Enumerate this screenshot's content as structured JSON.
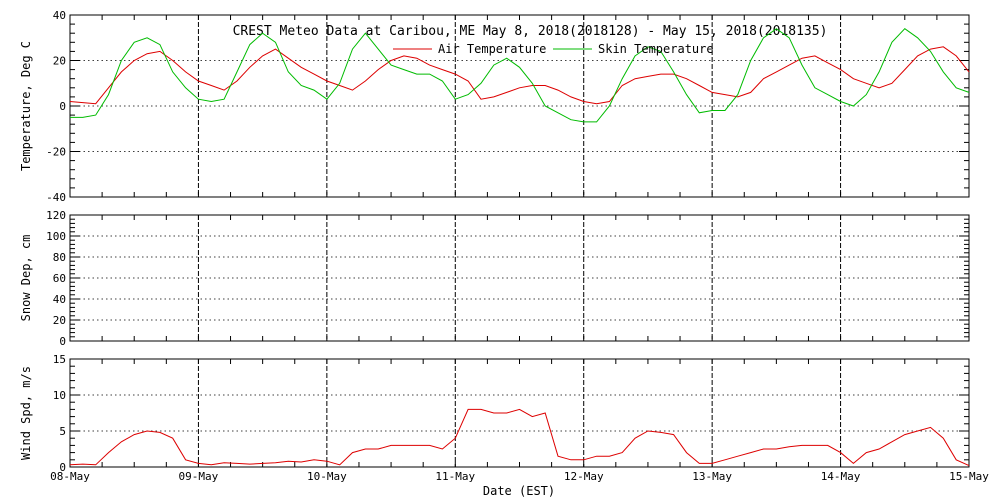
{
  "title": "CREST Meteo Data at Caribou, ME   May  8, 2018(2018128) - May 15, 2018(2018135)",
  "xlabel": "Date (EST)",
  "colors": {
    "air": "#dd0000",
    "skin": "#00bb00",
    "wind": "#dd0000"
  },
  "chart_data": [
    {
      "type": "line",
      "ylabel": "Temperature, Deg C",
      "xlabel": "",
      "xlim": [
        0,
        7
      ],
      "ylim": [
        -40,
        40
      ],
      "yticks": [
        -40,
        -20,
        0,
        20,
        40
      ],
      "xticks": [
        "08-May",
        "09-May",
        "10-May",
        "11-May",
        "12-May",
        "13-May",
        "14-May",
        "15-May"
      ],
      "legend": "top-center",
      "series": [
        {
          "name": "Air Temperature",
          "x": [
            0,
            0.1,
            0.2,
            0.3,
            0.4,
            0.5,
            0.6,
            0.7,
            0.8,
            0.9,
            1,
            1.1,
            1.2,
            1.3,
            1.4,
            1.5,
            1.6,
            1.7,
            1.8,
            1.9,
            2,
            2.1,
            2.2,
            2.3,
            2.4,
            2.5,
            2.6,
            2.7,
            2.8,
            2.9,
            3,
            3.1,
            3.2,
            3.3,
            3.4,
            3.5,
            3.6,
            3.7,
            3.8,
            3.9,
            4,
            4.1,
            4.2,
            4.3,
            4.4,
            4.5,
            4.6,
            4.7,
            4.8,
            4.9,
            5,
            5.1,
            5.2,
            5.3,
            5.4,
            5.5,
            5.6,
            5.7,
            5.8,
            5.9,
            6,
            6.1,
            6.2,
            6.3,
            6.4,
            6.5,
            6.6,
            6.7,
            6.8,
            6.9,
            7
          ],
          "values": [
            2,
            1.5,
            1,
            8,
            15,
            20,
            23,
            24,
            20,
            15,
            11,
            9,
            7,
            11,
            17,
            22,
            25,
            21,
            17,
            14,
            11,
            9,
            7,
            11,
            16,
            20,
            22,
            21,
            18,
            16,
            14,
            11,
            3,
            4,
            6,
            8,
            9,
            9,
            7,
            4,
            2,
            1,
            2,
            9,
            12,
            13,
            14,
            14,
            12,
            9,
            6,
            5,
            4,
            6,
            12,
            15,
            18,
            21,
            22,
            19,
            16,
            12,
            10,
            8,
            10,
            16,
            22,
            25,
            26,
            22,
            15
          ]
        },
        {
          "name": "Skin Temperature",
          "x": [
            0,
            0.1,
            0.2,
            0.3,
            0.4,
            0.5,
            0.6,
            0.7,
            0.8,
            0.9,
            1,
            1.1,
            1.2,
            1.3,
            1.4,
            1.5,
            1.6,
            1.7,
            1.8,
            1.9,
            2,
            2.1,
            2.2,
            2.3,
            2.4,
            2.5,
            2.6,
            2.7,
            2.8,
            2.9,
            3,
            3.1,
            3.2,
            3.3,
            3.4,
            3.5,
            3.6,
            3.7,
            3.8,
            3.9,
            4,
            4.1,
            4.2,
            4.3,
            4.4,
            4.5,
            4.6,
            4.7,
            4.8,
            4.9,
            5,
            5.1,
            5.2,
            5.3,
            5.4,
            5.5,
            5.6,
            5.7,
            5.8,
            5.9,
            6,
            6.1,
            6.2,
            6.3,
            6.4,
            6.5,
            6.6,
            6.7,
            6.8,
            6.9,
            7
          ],
          "values": [
            -5,
            -5,
            -4,
            5,
            20,
            28,
            30,
            27,
            15,
            8,
            3,
            2,
            3,
            15,
            27,
            32,
            28,
            15,
            9,
            7,
            3,
            10,
            25,
            32,
            25,
            18,
            16,
            14,
            14,
            11,
            3,
            5,
            10,
            18,
            21,
            17,
            10,
            0,
            -3,
            -6,
            -7,
            -7,
            0,
            12,
            22,
            26,
            24,
            15,
            5,
            -3,
            -2,
            -2,
            5,
            20,
            30,
            34,
            30,
            18,
            8,
            5,
            2,
            0,
            5,
            15,
            28,
            34,
            30,
            24,
            15,
            8,
            6
          ]
        }
      ]
    },
    {
      "type": "line",
      "ylabel": "Snow Dep, cm",
      "xlabel": "",
      "xlim": [
        0,
        7
      ],
      "ylim": [
        0,
        120
      ],
      "yticks": [
        0,
        20,
        40,
        60,
        80,
        100,
        120
      ],
      "xticks": [
        "08-May",
        "09-May",
        "10-May",
        "11-May",
        "12-May",
        "13-May",
        "14-May",
        "15-May"
      ],
      "series": []
    },
    {
      "type": "line",
      "ylabel": "Wind Spd, m/s",
      "xlabel": "Date (EST)",
      "xlim": [
        0,
        7
      ],
      "ylim": [
        0,
        15
      ],
      "yticks": [
        0,
        5,
        10,
        15
      ],
      "xticks": [
        "08-May",
        "09-May",
        "10-May",
        "11-May",
        "12-May",
        "13-May",
        "14-May",
        "15-May"
      ],
      "series": [
        {
          "name": "",
          "x": [
            0,
            0.1,
            0.2,
            0.3,
            0.4,
            0.5,
            0.6,
            0.7,
            0.8,
            0.9,
            1,
            1.1,
            1.2,
            1.3,
            1.4,
            1.5,
            1.6,
            1.7,
            1.8,
            1.9,
            2,
            2.1,
            2.2,
            2.3,
            2.4,
            2.5,
            2.6,
            2.7,
            2.8,
            2.9,
            3,
            3.1,
            3.2,
            3.3,
            3.4,
            3.5,
            3.6,
            3.7,
            3.8,
            3.9,
            4,
            4.1,
            4.2,
            4.3,
            4.4,
            4.5,
            4.6,
            4.7,
            4.8,
            4.9,
            5,
            5.1,
            5.2,
            5.3,
            5.4,
            5.5,
            5.6,
            5.7,
            5.8,
            5.9,
            6,
            6.1,
            6.2,
            6.3,
            6.4,
            6.5,
            6.6,
            6.7,
            6.8,
            6.9,
            7
          ],
          "values": [
            0.3,
            0.4,
            0.3,
            2,
            3.5,
            4.5,
            5,
            4.8,
            4,
            1,
            0.5,
            0.3,
            0.6,
            0.5,
            0.4,
            0.5,
            0.6,
            0.8,
            0.7,
            1,
            0.8,
            0.3,
            2,
            2.5,
            2.5,
            3,
            3,
            3,
            3,
            2.5,
            4,
            8,
            8,
            7.5,
            7.5,
            8,
            7,
            7.5,
            1.5,
            1,
            1,
            1.5,
            1.5,
            2,
            4,
            5,
            4.8,
            4.5,
            2,
            0.5,
            0.5,
            1,
            1.5,
            2,
            2.5,
            2.5,
            2.8,
            3,
            3,
            3,
            2,
            0.5,
            2,
            2.5,
            3.5,
            4.5,
            5,
            5.5,
            4,
            1,
            0.2
          ]
        }
      ]
    }
  ]
}
